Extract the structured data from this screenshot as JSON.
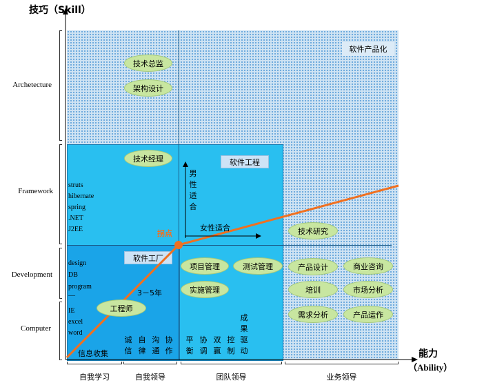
{
  "axes": {
    "y_title": "技巧（Skill）",
    "x_title": "能力",
    "x_subtitle": "（Ability）"
  },
  "y_levels": [
    "Archetecture",
    "Framework",
    "Development",
    "Computer"
  ],
  "x_levels": [
    "自我学习",
    "自我领导",
    "团队领导",
    "业务领导"
  ],
  "zones": {
    "outer": "软件产品化",
    "middle": "软件工程",
    "inner": "软件工厂"
  },
  "ovals": {
    "tech_director": "技术总监",
    "architecture_design": "架构设计",
    "tech_manager": "技术经理",
    "tech_research": "技术研究",
    "engineer": "工程师",
    "project_mgmt": "项目管理",
    "test_mgmt": "测试管理",
    "implementation_mgmt": "实施管理",
    "product_design": "产品设计",
    "business_consulting": "商业咨询",
    "training": "培训",
    "market_analysis": "市场分析",
    "requirements_analysis": "需求分析",
    "product_operation": "产品运作"
  },
  "framework_list": [
    "struts",
    "hibernate",
    "spring",
    ".NET",
    "J2EE"
  ],
  "development_list": [
    "design",
    "DB",
    "program",
    "—"
  ],
  "computer_list": [
    "IE",
    "excel",
    "word"
  ],
  "annotations": {
    "inflection": "拐点",
    "male_fit": "男性适合",
    "female_fit": "女性适合",
    "years": "3－5年",
    "info_collect": "信息收集"
  },
  "vertical_words": [
    "诚信",
    "自律",
    "沟通",
    "协作",
    "平衡",
    "协调",
    "双赢",
    "控制",
    "成果驱动"
  ],
  "colors": {
    "inner_fill": "#1aa4e8",
    "middle_fill": "#29bff0",
    "outer_dots": "#6aa8dc",
    "trend_line": "#f07020",
    "oval_fill": "#c8e6a0"
  }
}
